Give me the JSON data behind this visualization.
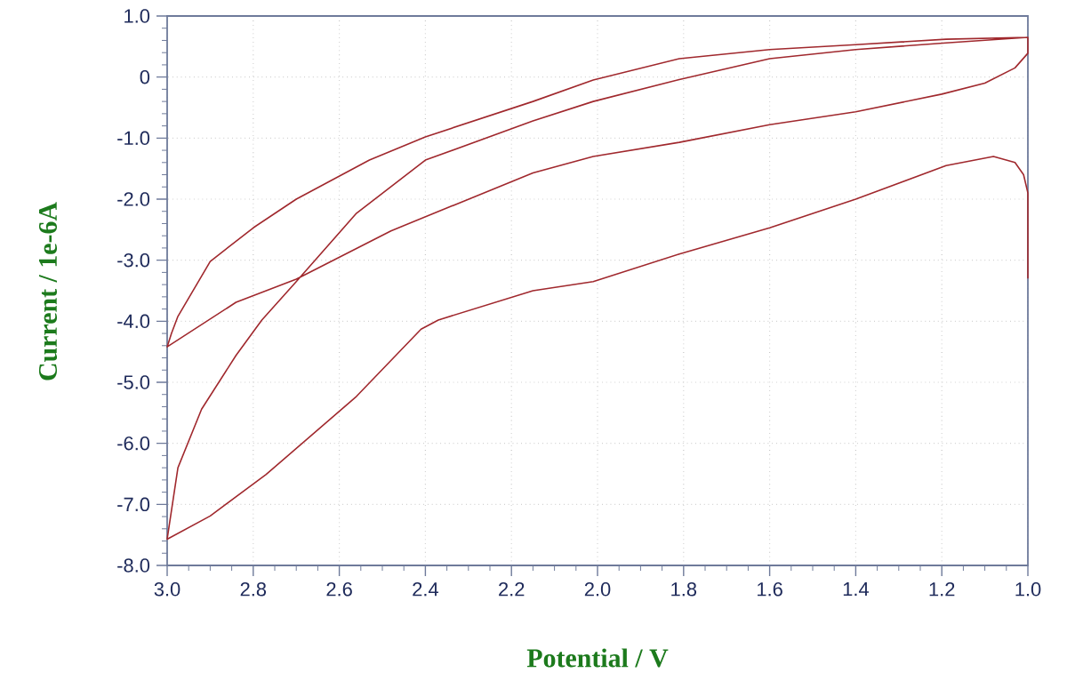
{
  "chart_data": {
    "type": "line",
    "xlabel": "Potential / V",
    "ylabel": "Current / 1e-6A",
    "xlim": [
      3.0,
      1.0
    ],
    "ylim": [
      -8.0,
      1.0
    ],
    "xticks": [
      {
        "value": 3.0,
        "label": "3.0"
      },
      {
        "value": 2.8,
        "label": "2.8"
      },
      {
        "value": 2.6,
        "label": "2.6"
      },
      {
        "value": 2.4,
        "label": "2.4"
      },
      {
        "value": 2.2,
        "label": "2.2"
      },
      {
        "value": 2.0,
        "label": "2.0"
      },
      {
        "value": 1.8,
        "label": "1.8"
      },
      {
        "value": 1.6,
        "label": "1.6"
      },
      {
        "value": 1.4,
        "label": "1.4"
      },
      {
        "value": 1.2,
        "label": "1.2"
      },
      {
        "value": 1.0,
        "label": "1.0"
      }
    ],
    "yticks": [
      {
        "value": 1.0,
        "label": "1.0"
      },
      0,
      {
        "value": -1.0,
        "label": "-1.0"
      },
      {
        "value": -2.0,
        "label": "-2.0"
      },
      {
        "value": -3.0,
        "label": "-3.0"
      },
      {
        "value": -4.0,
        "label": "-4.0"
      },
      {
        "value": -5.0,
        "label": "-5.0"
      },
      {
        "value": -6.0,
        "label": "-6.0"
      },
      {
        "value": -7.0,
        "label": "-7.0"
      },
      {
        "value": -8.0,
        "label": "-8.0"
      }
    ],
    "grid": true,
    "series": [
      {
        "color": "#a0282d",
        "x": [
          1.0,
          1.0,
          1.01,
          1.03,
          1.08,
          1.19,
          1.4,
          1.6,
          1.81,
          2.01,
          2.15,
          2.37,
          2.41,
          2.56,
          2.77,
          2.9,
          3.0,
          2.975,
          2.92,
          2.84,
          2.78,
          2.7,
          2.56,
          2.4,
          2.15,
          2.01,
          1.81,
          1.6,
          1.4,
          1.19,
          1.0,
          1.0,
          1.03,
          1.1,
          1.2,
          1.4,
          1.6,
          1.81,
          2.01,
          2.15,
          2.48,
          2.7,
          2.84,
          3.0,
          2.99,
          2.975,
          2.9,
          2.8,
          2.7,
          2.53,
          2.4,
          2.15,
          2.01,
          1.81,
          1.6,
          1.4,
          1.19,
          1.0
        ],
        "values": [
          -3.3,
          -1.9,
          -1.6,
          -1.4,
          -1.3,
          -1.45,
          -2.0,
          -2.47,
          -2.9,
          -3.35,
          -3.5,
          -3.98,
          -4.13,
          -5.23,
          -6.51,
          -7.19,
          -7.57,
          -6.4,
          -5.44,
          -4.56,
          -3.98,
          -3.35,
          -2.23,
          -1.36,
          -0.72,
          -0.4,
          -0.04,
          0.3,
          0.45,
          0.56,
          0.65,
          0.39,
          0.15,
          -0.1,
          -0.28,
          -0.57,
          -0.78,
          -1.07,
          -1.3,
          -1.57,
          -2.52,
          -3.31,
          -3.69,
          -4.42,
          -4.2,
          -3.92,
          -3.02,
          -2.47,
          -2.0,
          -1.36,
          -0.98,
          -0.4,
          -0.05,
          0.3,
          0.45,
          0.53,
          0.62,
          0.65
        ]
      }
    ]
  }
}
